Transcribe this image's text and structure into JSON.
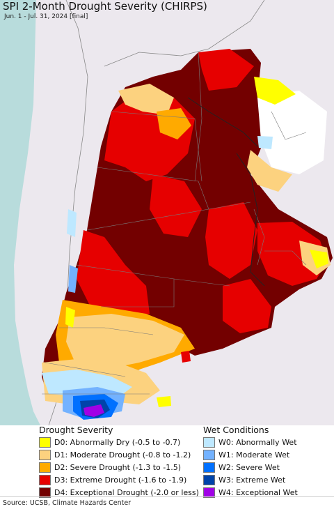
{
  "header": {
    "title": "SPI 2-Month Drought Severity (CHIRPS)",
    "subtitle": "Jun. 1 - Jul. 31, 2024 [final]"
  },
  "colors": {
    "ocean": "#b8dcdc",
    "outside_land": "#ece8ee",
    "no_drought": "#ffffff",
    "D0": "#ffff00",
    "D1": "#fcd27f",
    "D2": "#ffaa00",
    "D3": "#e60000",
    "D4": "#730000",
    "W0": "#bee8ff",
    "W1": "#73b2ff",
    "W2": "#0070ff",
    "W3": "#0044aa",
    "W4": "#a000e6"
  },
  "legend": {
    "drought_title": "Drought Severity",
    "drought_items": [
      {
        "key": "D0",
        "label": "D0: Abnormally Dry (-0.5 to -0.7)",
        "color": "#ffff00"
      },
      {
        "key": "D1",
        "label": "D1: Moderate Drought (-0.8 to -1.2)",
        "color": "#fcd27f"
      },
      {
        "key": "D2",
        "label": "D2: Severe Drought (-1.3 to -1.5)",
        "color": "#ffaa00"
      },
      {
        "key": "D3",
        "label": "D3: Extreme Drought (-1.6 to -1.9)",
        "color": "#e60000"
      },
      {
        "key": "D4",
        "label": "D4: Exceptional Drought (-2.0 or less)",
        "color": "#730000"
      }
    ],
    "wet_title": "Wet Conditions",
    "wet_items": [
      {
        "key": "W0",
        "label": "W0: Abnormally Wet",
        "color": "#bee8ff"
      },
      {
        "key": "W1",
        "label": "W1: Moderate Wet",
        "color": "#73b2ff"
      },
      {
        "key": "W2",
        "label": "W2: Severe Wet",
        "color": "#0070ff"
      },
      {
        "key": "W3",
        "label": "W3: Extreme Wet",
        "color": "#0044aa"
      },
      {
        "key": "W4",
        "label": "W4: Exceptional Wet",
        "color": "#a000e6"
      }
    ]
  },
  "footer": {
    "source": "Source: UCSB, Climate Hazards Center"
  }
}
